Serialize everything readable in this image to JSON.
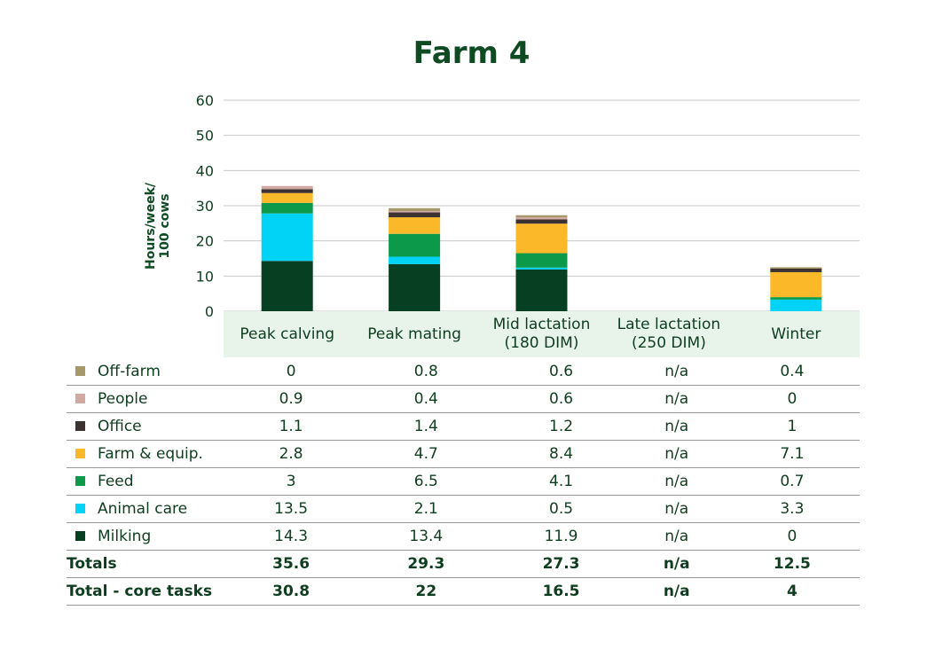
{
  "title": "Farm 4",
  "chart_data": {
    "type": "bar",
    "stacked": true,
    "title": "Farm 4",
    "ylabel": "Hours/week/\n100 cows",
    "ylim": [
      0,
      60
    ],
    "yticks": [
      0,
      10,
      20,
      30,
      40,
      50,
      60
    ],
    "grid": true,
    "categories": [
      "Peak calving",
      "Peak mating",
      "Mid lactation\n(180 DIM)",
      "Late lactation\n(250 DIM)",
      "Winter"
    ],
    "series": [
      {
        "name": "Milking",
        "color": "#063f21",
        "values": [
          14.3,
          13.4,
          11.9,
          null,
          0
        ]
      },
      {
        "name": "Animal care",
        "color": "#00d3f5",
        "values": [
          13.5,
          2.1,
          0.5,
          null,
          3.3
        ]
      },
      {
        "name": "Feed",
        "color": "#0c9a4a",
        "values": [
          3,
          6.5,
          4.1,
          null,
          0.7
        ]
      },
      {
        "name": "Farm & equip.",
        "color": "#fbb829",
        "values": [
          2.8,
          4.7,
          8.4,
          null,
          7.1
        ]
      },
      {
        "name": "Office",
        "color": "#3d3232",
        "values": [
          1.1,
          1.4,
          1.2,
          null,
          1
        ]
      },
      {
        "name": "People",
        "color": "#d2a8a2",
        "values": [
          0.9,
          0.4,
          0.6,
          null,
          0
        ]
      },
      {
        "name": "Off-farm",
        "color": "#a5986a",
        "values": [
          0,
          0.8,
          0.6,
          null,
          0.4
        ]
      }
    ]
  },
  "table": {
    "rows": [
      {
        "label": "Off-farm",
        "color": "#a5986a",
        "values": [
          "0",
          "0.8",
          "0.6",
          "n/a",
          "0.4"
        ]
      },
      {
        "label": "People",
        "color": "#d2a8a2",
        "values": [
          "0.9",
          "0.4",
          "0.6",
          "n/a",
          "0"
        ]
      },
      {
        "label": "Office",
        "color": "#3d3232",
        "values": [
          "1.1",
          "1.4",
          "1.2",
          "n/a",
          "1"
        ]
      },
      {
        "label": "Farm & equip.",
        "color": "#fbb829",
        "values": [
          "2.8",
          "4.7",
          "8.4",
          "n/a",
          "7.1"
        ]
      },
      {
        "label": "Feed",
        "color": "#0c9a4a",
        "values": [
          "3",
          "6.5",
          "4.1",
          "n/a",
          "0.7"
        ]
      },
      {
        "label": "Animal care",
        "color": "#00d3f5",
        "values": [
          "13.5",
          "2.1",
          "0.5",
          "n/a",
          "3.3"
        ]
      },
      {
        "label": "Milking",
        "color": "#063f21",
        "values": [
          "14.3",
          "13.4",
          "11.9",
          "n/a",
          "0"
        ]
      }
    ],
    "totals": {
      "label": "Totals",
      "values": [
        "35.6",
        "29.3",
        "27.3",
        "n/a",
        "12.5"
      ]
    },
    "core": {
      "label": "Total - core tasks",
      "values": [
        "30.8",
        "22",
        "16.5",
        "n/a",
        "4"
      ]
    }
  }
}
